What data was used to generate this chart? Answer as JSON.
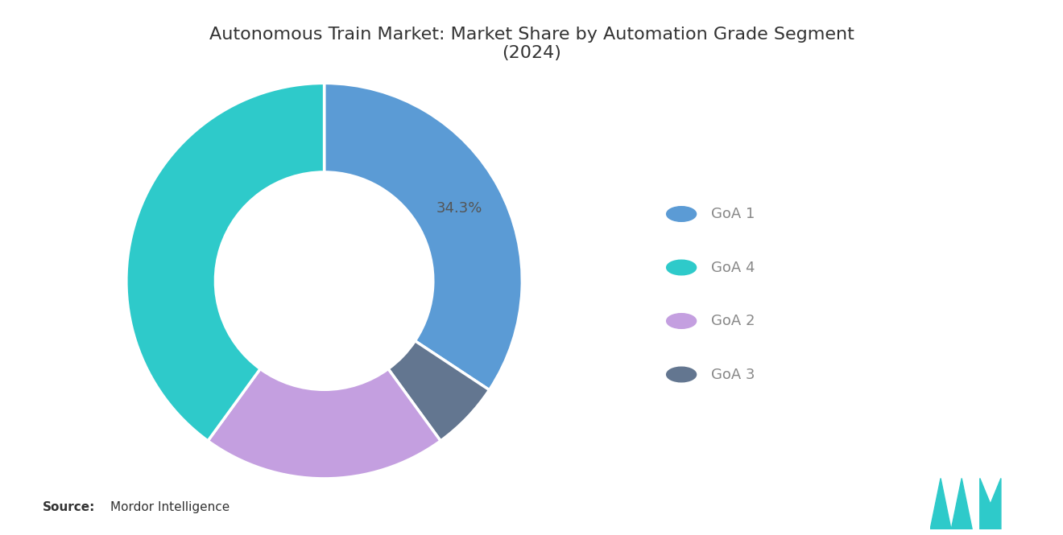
{
  "title": "Autonomous Train Market: Market Share by Automation Grade Segment\n(2024)",
  "segments_ordered": [
    "GoA 1",
    "GoA 3",
    "GoA 2",
    "GoA 4"
  ],
  "values_ordered": [
    34.3,
    5.7,
    20.0,
    40.0
  ],
  "colors_ordered": [
    "#5B9BD5",
    "#637690",
    "#C49FE0",
    "#2ECACA"
  ],
  "legend_segments": [
    "GoA 1",
    "GoA 4",
    "GoA 2",
    "GoA 3"
  ],
  "legend_colors": [
    "#5B9BD5",
    "#2ECACA",
    "#C49FE0",
    "#637690"
  ],
  "label_text": "34.3%",
  "source_bold": "Source:",
  "source_normal": "Mordor Intelligence",
  "background_color": "#FFFFFF",
  "title_color": "#333333",
  "legend_text_color": "#888888",
  "source_text_color": "#333333",
  "wedge_linewidth": 2.5,
  "wedge_edgecolor": "#FFFFFF",
  "donut_width": 0.45,
  "start_angle": 90,
  "annotation_color": "#555555",
  "annotation_fontsize": 13,
  "logo_color": "#2ECACA"
}
